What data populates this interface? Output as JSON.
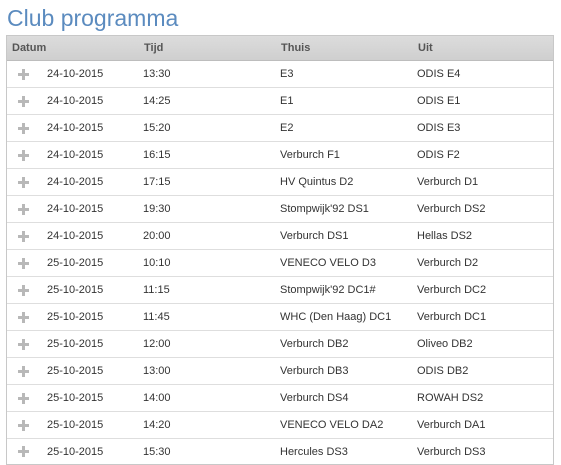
{
  "page_title": "Club programma",
  "columns": {
    "datum": "Datum",
    "tijd": "Tijd",
    "thuis": "Thuis",
    "uit": "Uit"
  },
  "icons": {
    "expand": "plus-icon"
  },
  "matches": [
    {
      "datum": "24-10-2015",
      "tijd": "13:30",
      "thuis": "E3",
      "uit": "ODIS E4"
    },
    {
      "datum": "24-10-2015",
      "tijd": "14:25",
      "thuis": "E1",
      "uit": "ODIS E1"
    },
    {
      "datum": "24-10-2015",
      "tijd": "15:20",
      "thuis": "E2",
      "uit": "ODIS E3"
    },
    {
      "datum": "24-10-2015",
      "tijd": "16:15",
      "thuis": "Verburch F1",
      "uit": "ODIS F2"
    },
    {
      "datum": "24-10-2015",
      "tijd": "17:15",
      "thuis": "HV Quintus D2",
      "uit": "Verburch D1"
    },
    {
      "datum": "24-10-2015",
      "tijd": "19:30",
      "thuis": "Stompwijk'92 DS1",
      "uit": "Verburch DS2"
    },
    {
      "datum": "24-10-2015",
      "tijd": "20:00",
      "thuis": "Verburch DS1",
      "uit": "Hellas DS2"
    },
    {
      "datum": "25-10-2015",
      "tijd": "10:10",
      "thuis": "VENECO VELO D3",
      "uit": "Verburch D2"
    },
    {
      "datum": "25-10-2015",
      "tijd": "11:15",
      "thuis": "Stompwijk'92 DC1#",
      "uit": "Verburch DC2"
    },
    {
      "datum": "25-10-2015",
      "tijd": "11:45",
      "thuis": "WHC (Den Haag) DC1",
      "uit": "Verburch DC1"
    },
    {
      "datum": "25-10-2015",
      "tijd": "12:00",
      "thuis": "Verburch DB2",
      "uit": "Oliveo DB2"
    },
    {
      "datum": "25-10-2015",
      "tijd": "13:00",
      "thuis": "Verburch DB3",
      "uit": "ODIS DB2"
    },
    {
      "datum": "25-10-2015",
      "tijd": "14:00",
      "thuis": "Verburch DS4",
      "uit": "ROWAH DS2"
    },
    {
      "datum": "25-10-2015",
      "tijd": "14:20",
      "thuis": "VENECO VELO DA2",
      "uit": "Verburch DA1"
    },
    {
      "datum": "25-10-2015",
      "tijd": "15:30",
      "thuis": "Hercules DS3",
      "uit": "Verburch DS3"
    }
  ]
}
